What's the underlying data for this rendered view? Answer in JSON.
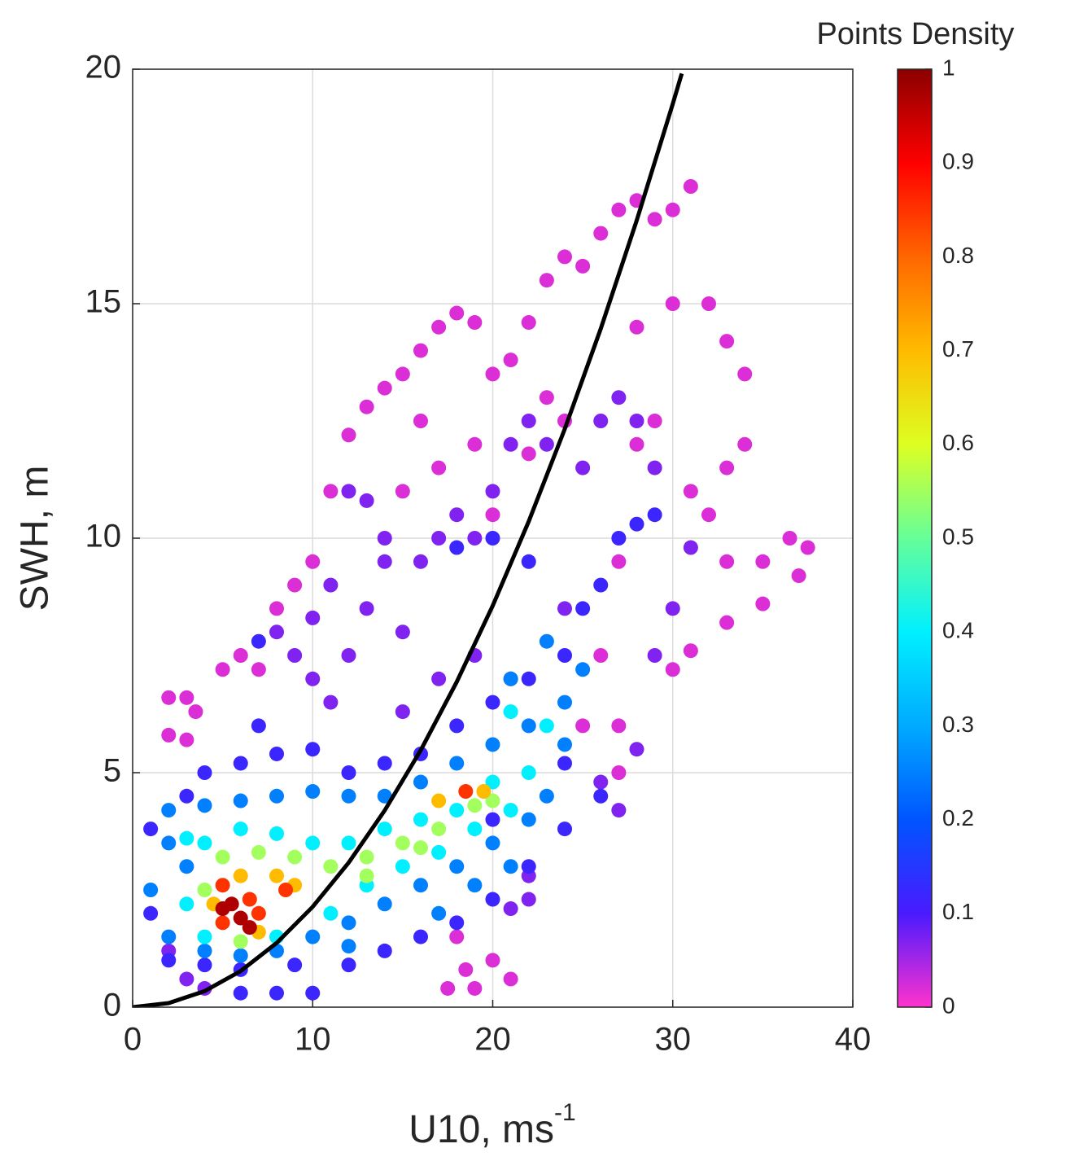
{
  "chart_data": {
    "type": "scatter",
    "xlabel": "U10, ms",
    "xlabel_sup": "-1",
    "ylabel": "SWH, m",
    "colorbar_title": "Points Density",
    "xlim": [
      0,
      40
    ],
    "ylim": [
      0,
      20
    ],
    "xticks": [
      0,
      10,
      20,
      30,
      40
    ],
    "yticks": [
      0,
      5,
      10,
      15,
      20
    ],
    "grid": true,
    "clim": [
      0,
      1
    ],
    "cticks": [
      0,
      0.1,
      0.2,
      0.3,
      0.4,
      0.5,
      0.6,
      0.7,
      0.8,
      0.9,
      1
    ],
    "colormap": [
      "#ff33cc",
      "#4a1aff",
      "#0055ff",
      "#00aaff",
      "#00f0ff",
      "#66ff99",
      "#ddff22",
      "#ffbb00",
      "#ff6600",
      "#ff0000",
      "#8b0000"
    ],
    "curve": {
      "color": "#000000",
      "x": [
        0,
        2,
        4,
        6,
        8,
        10,
        12,
        14,
        16,
        18,
        20,
        22,
        24,
        26,
        28,
        30,
        30.5
      ],
      "y": [
        0,
        0.086,
        0.342,
        0.77,
        1.37,
        2.14,
        3.082,
        4.194,
        5.478,
        6.934,
        8.56,
        10.358,
        12.326,
        14.466,
        16.778,
        19.26,
        19.907
      ]
    },
    "points": {
      "x": [
        2,
        3,
        3.5,
        2,
        3,
        5,
        6,
        7,
        8,
        9,
        10,
        11,
        12,
        13,
        14,
        15,
        16,
        17,
        18,
        19,
        20,
        21,
        22,
        23,
        24,
        25,
        26,
        27,
        28,
        29,
        30,
        31,
        32,
        33,
        34,
        34,
        33,
        32,
        33,
        35,
        36.5,
        37.5,
        37,
        35,
        33,
        31,
        30,
        27,
        26,
        27,
        28,
        28,
        30,
        19,
        17,
        15,
        16,
        20,
        22,
        24,
        18,
        18.5,
        17.5,
        19,
        20,
        21,
        23,
        29,
        31,
        25,
        27,
        8,
        9,
        10,
        11,
        12,
        13,
        14,
        15,
        16,
        17,
        18,
        19,
        20,
        21,
        22,
        23,
        25,
        26,
        27,
        28,
        29,
        12,
        13,
        14,
        11,
        10,
        15,
        17,
        19,
        21,
        26,
        27,
        28,
        22,
        22,
        21,
        3,
        4,
        2,
        29,
        30,
        31,
        24,
        4,
        6,
        8,
        10,
        12,
        14,
        16,
        18,
        20,
        22,
        24,
        25,
        26,
        27,
        28,
        29,
        18,
        20,
        22,
        7,
        7,
        3,
        1,
        1,
        2,
        4,
        6,
        8,
        9,
        12,
        14,
        16,
        18,
        20,
        22,
        24,
        26,
        24,
        20,
        10,
        6,
        2,
        4,
        6,
        8,
        10,
        12,
        14,
        16,
        18,
        20,
        22,
        24,
        21,
        23,
        25,
        1,
        2,
        4,
        6,
        8,
        10,
        12,
        14,
        16,
        18,
        20,
        22,
        24,
        2,
        3,
        12,
        17,
        19,
        21,
        23,
        3,
        4,
        6,
        8,
        10,
        12,
        14,
        16,
        18,
        20,
        22,
        21,
        23,
        4,
        8,
        11,
        13,
        15,
        17,
        19,
        21,
        3,
        5,
        7,
        9,
        11,
        13,
        15,
        17,
        19,
        20,
        6,
        4,
        13,
        16,
        6,
        8,
        9,
        17,
        19.5,
        4.5,
        7,
        5,
        6.5,
        8.5,
        18.5,
        5,
        7,
        5.5,
        6,
        5,
        6.5
      ],
      "y": [
        6.6,
        6.6,
        6.3,
        5.8,
        5.7,
        7.2,
        7.5,
        7.2,
        8.5,
        9,
        9.5,
        11,
        12.2,
        12.8,
        13.2,
        13.5,
        14,
        14.5,
        14.8,
        14.6,
        13.5,
        13.8,
        14.6,
        15.5,
        16,
        15.8,
        16.5,
        17,
        17.2,
        16.8,
        17,
        17.5,
        15,
        14.2,
        13.5,
        12,
        11.5,
        10.5,
        9.5,
        9.5,
        10,
        9.8,
        9.2,
        8.6,
        8.2,
        7.6,
        7.2,
        6,
        7.5,
        9.5,
        12,
        14.5,
        15,
        12,
        11.5,
        11,
        12.5,
        10.5,
        11.8,
        12.5,
        1.5,
        0.8,
        0.4,
        0.4,
        1,
        0.6,
        13,
        12.5,
        11,
        6,
        5,
        8,
        7.5,
        7,
        6.5,
        7.5,
        8.5,
        9.5,
        8,
        9.5,
        10,
        10.5,
        10,
        11,
        12,
        12.5,
        12,
        11.5,
        12.5,
        13,
        12.5,
        11.5,
        11,
        10.8,
        10,
        9,
        8.3,
        6.3,
        7,
        7.5,
        7,
        4.8,
        4.2,
        5.5,
        2.8,
        2.3,
        2.1,
        0.6,
        0.4,
        1.2,
        7.5,
        8.5,
        9.8,
        8.5,
        5,
        5.2,
        5.4,
        5.5,
        5,
        5.2,
        5.4,
        6,
        6.5,
        7,
        7.5,
        8.5,
        9,
        10,
        10.3,
        10.5,
        9.8,
        10,
        9.5,
        7.8,
        6,
        4.5,
        3.8,
        2,
        1,
        0.9,
        0.8,
        0.3,
        0.9,
        0.9,
        1.2,
        1.5,
        1.8,
        2.3,
        3,
        3.8,
        4.5,
        5.2,
        4,
        0.3,
        0.3,
        4.2,
        4.3,
        4.4,
        4.5,
        4.6,
        4.5,
        4.5,
        4.8,
        5.2,
        5.6,
        6,
        6.5,
        7,
        7.8,
        7.2,
        2.5,
        1.5,
        1.2,
        1.1,
        1.2,
        1.5,
        1.8,
        2.2,
        2.6,
        3,
        3.5,
        4,
        5.6,
        3.5,
        3,
        1.3,
        2,
        2.6,
        3,
        4.5,
        3.6,
        3.5,
        3.8,
        3.7,
        3.5,
        3.5,
        3.8,
        4,
        4.2,
        4.8,
        5,
        6.3,
        6,
        1.5,
        1.5,
        2,
        2.6,
        3,
        3.3,
        3.8,
        4.2,
        2.2,
        3.2,
        3.3,
        3.2,
        3,
        3.2,
        3.5,
        3.8,
        4.3,
        4.4,
        1.4,
        2.5,
        2.8,
        3.4,
        2.8,
        2.8,
        2.6,
        4.4,
        4.6,
        2.2,
        1.6,
        2.6,
        2.3,
        2.5,
        4.6,
        1.8,
        2,
        2.2,
        1.9,
        2.1,
        1.7
      ],
      "density": [
        0.02,
        0.02,
        0.02,
        0.02,
        0.02,
        0.02,
        0.02,
        0.02,
        0.02,
        0.02,
        0.02,
        0.02,
        0.02,
        0.02,
        0.02,
        0.02,
        0.02,
        0.02,
        0.02,
        0.02,
        0.02,
        0.02,
        0.02,
        0.02,
        0.02,
        0.02,
        0.02,
        0.02,
        0.02,
        0.02,
        0.02,
        0.02,
        0.02,
        0.02,
        0.02,
        0.02,
        0.02,
        0.02,
        0.02,
        0.02,
        0.02,
        0.02,
        0.02,
        0.02,
        0.02,
        0.02,
        0.02,
        0.02,
        0.02,
        0.02,
        0.02,
        0.02,
        0.02,
        0.02,
        0.02,
        0.02,
        0.02,
        0.02,
        0.02,
        0.02,
        0.02,
        0.02,
        0.02,
        0.02,
        0.02,
        0.02,
        0.02,
        0.02,
        0.02,
        0.02,
        0.02,
        0.07,
        0.07,
        0.07,
        0.07,
        0.07,
        0.07,
        0.07,
        0.07,
        0.07,
        0.07,
        0.07,
        0.07,
        0.07,
        0.07,
        0.07,
        0.07,
        0.07,
        0.07,
        0.07,
        0.07,
        0.07,
        0.07,
        0.07,
        0.07,
        0.07,
        0.07,
        0.07,
        0.07,
        0.07,
        0.07,
        0.07,
        0.07,
        0.07,
        0.07,
        0.07,
        0.07,
        0.07,
        0.07,
        0.07,
        0.07,
        0.07,
        0.07,
        0.07,
        0.12,
        0.12,
        0.12,
        0.12,
        0.12,
        0.12,
        0.12,
        0.12,
        0.12,
        0.12,
        0.12,
        0.12,
        0.12,
        0.12,
        0.12,
        0.12,
        0.12,
        0.12,
        0.12,
        0.12,
        0.12,
        0.12,
        0.12,
        0.12,
        0.12,
        0.12,
        0.12,
        0.12,
        0.12,
        0.12,
        0.12,
        0.12,
        0.12,
        0.12,
        0.12,
        0.12,
        0.12,
        0.12,
        0.12,
        0.12,
        0.12,
        0.25,
        0.25,
        0.25,
        0.25,
        0.25,
        0.25,
        0.25,
        0.25,
        0.25,
        0.25,
        0.25,
        0.25,
        0.25,
        0.25,
        0.25,
        0.25,
        0.25,
        0.25,
        0.25,
        0.25,
        0.25,
        0.25,
        0.25,
        0.25,
        0.25,
        0.25,
        0.25,
        0.25,
        0.25,
        0.25,
        0.25,
        0.25,
        0.25,
        0.25,
        0.25,
        0.4,
        0.4,
        0.4,
        0.4,
        0.4,
        0.4,
        0.4,
        0.4,
        0.4,
        0.4,
        0.4,
        0.4,
        0.4,
        0.4,
        0.4,
        0.4,
        0.4,
        0.4,
        0.4,
        0.4,
        0.4,
        0.4,
        0.55,
        0.55,
        0.55,
        0.55,
        0.55,
        0.55,
        0.55,
        0.55,
        0.55,
        0.55,
        0.55,
        0.55,
        0.55,
        0.7,
        0.7,
        0.7,
        0.7,
        0.7,
        0.7,
        0.7,
        0.85,
        0.85,
        0.85,
        0.85,
        0.85,
        0.85,
        0.97,
        0.97,
        0.97,
        0.97
      ]
    }
  }
}
